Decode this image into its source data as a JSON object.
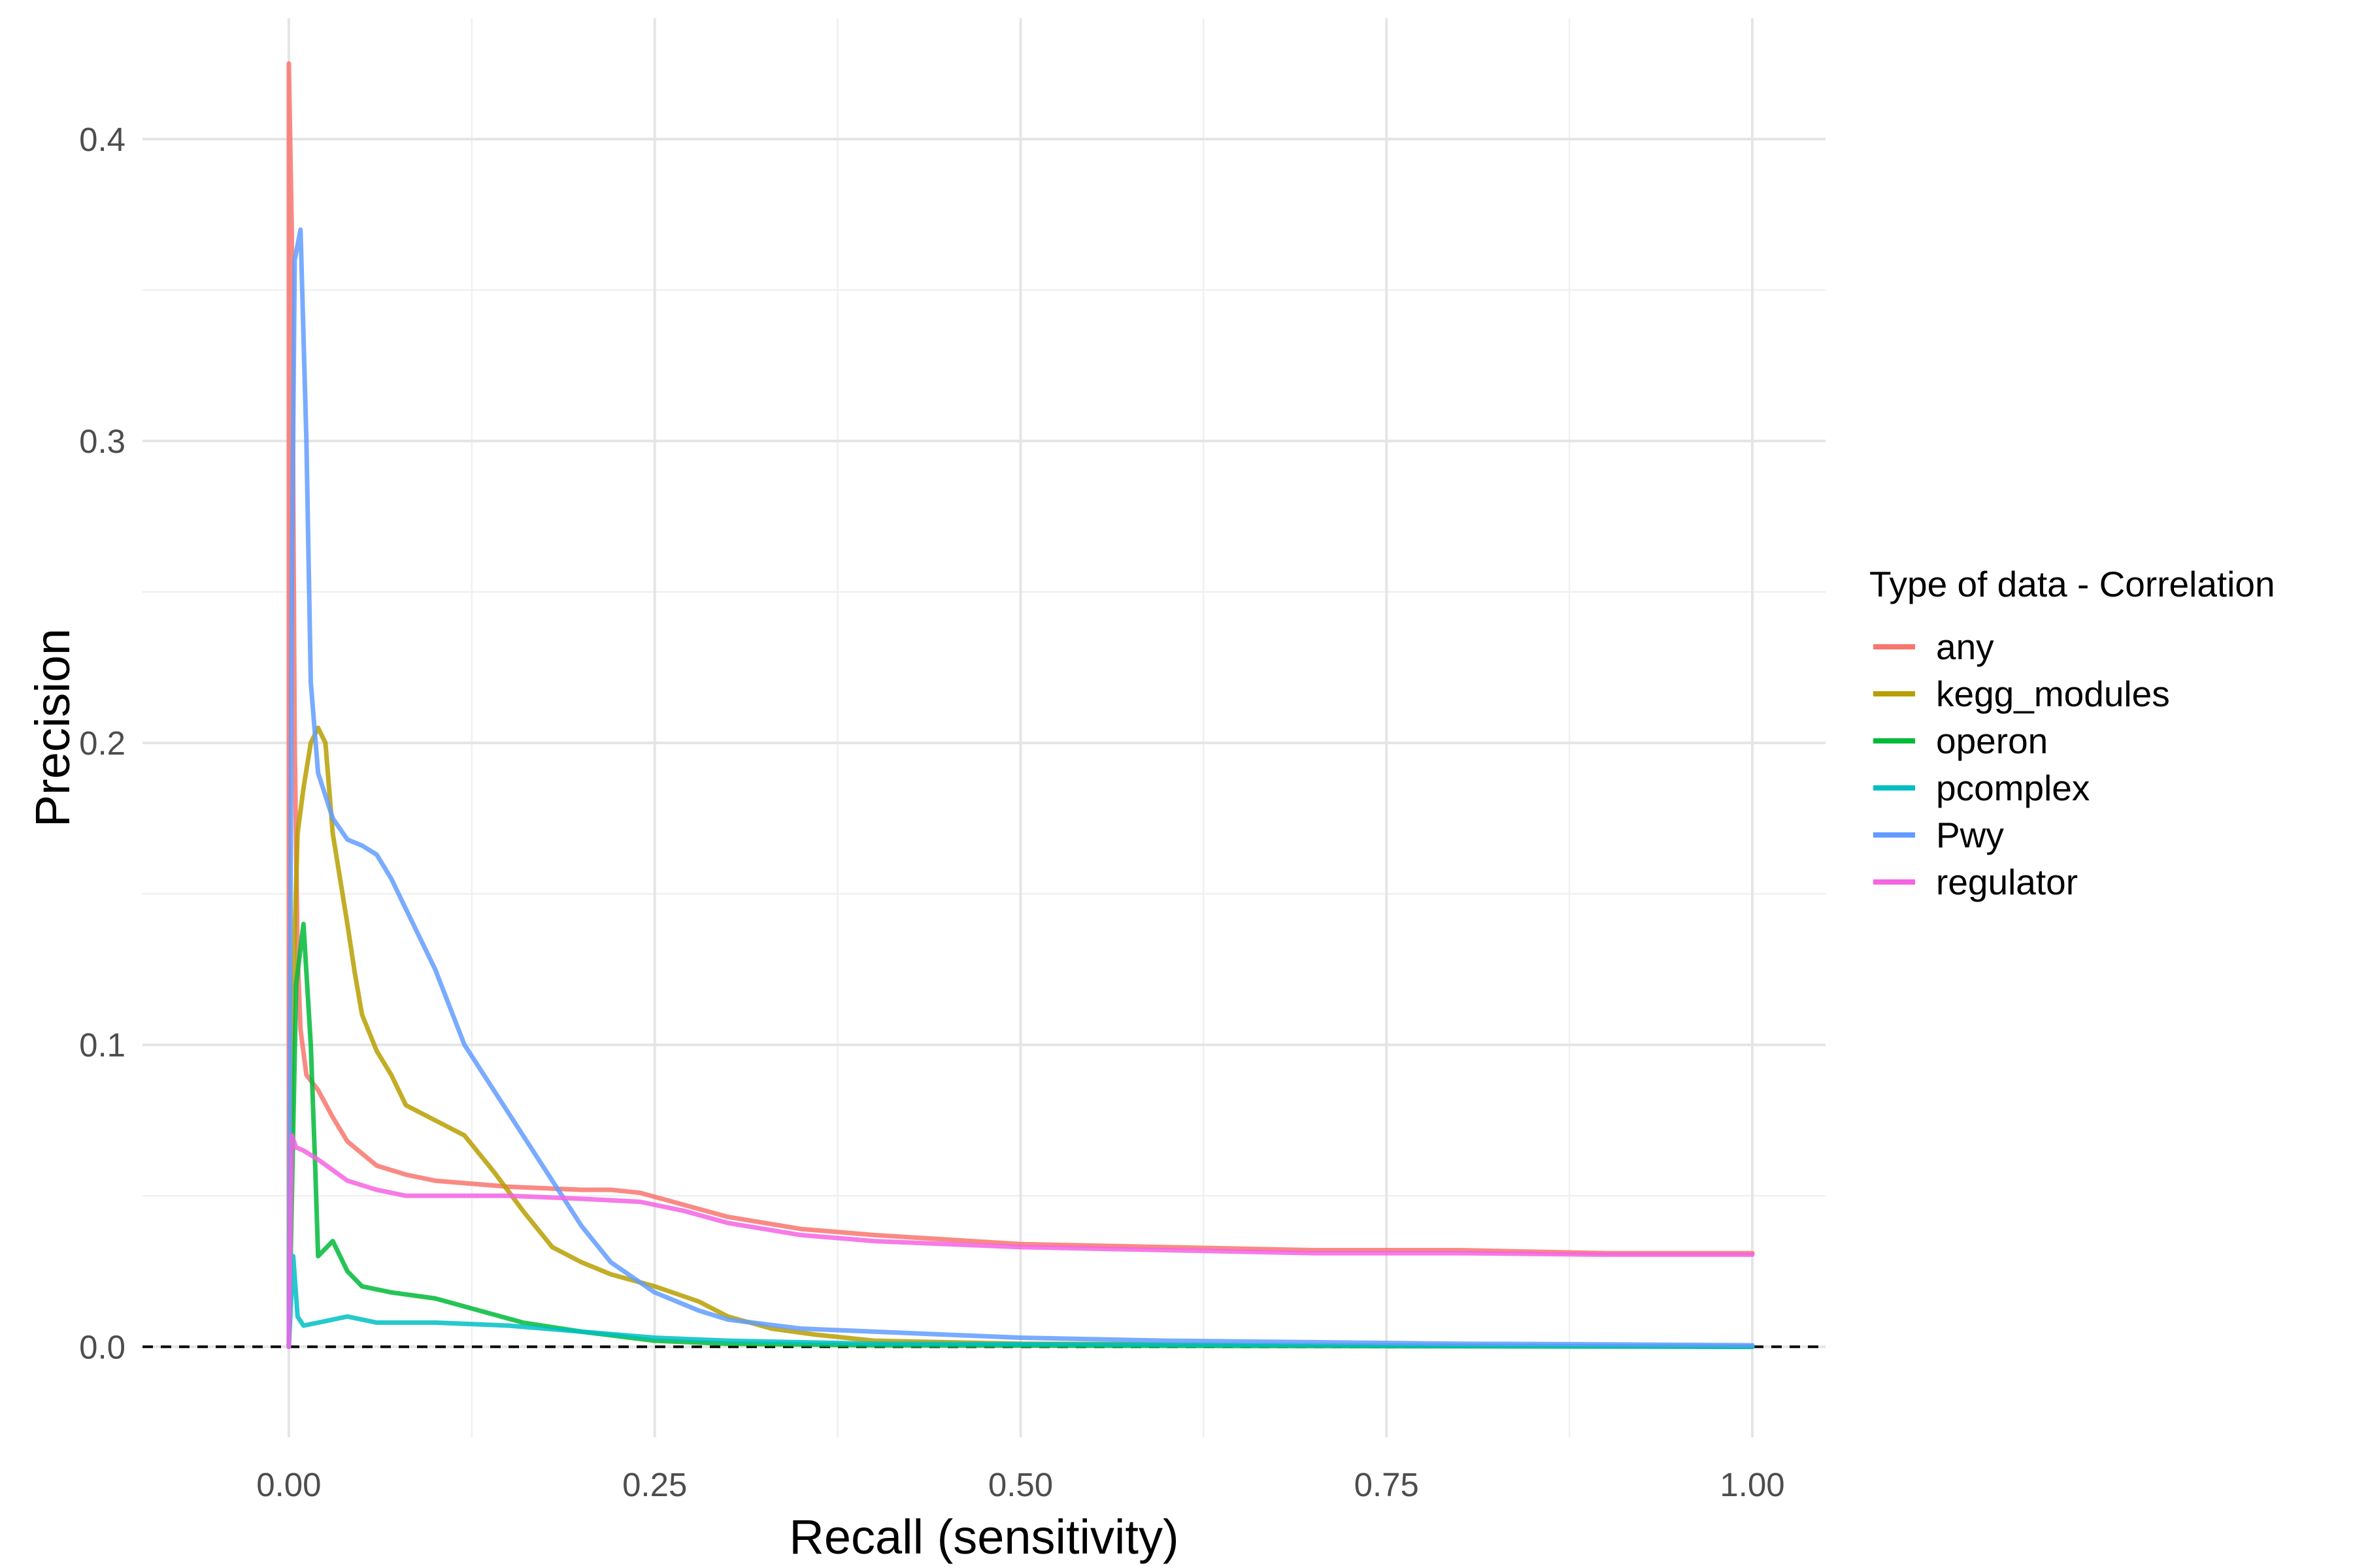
{
  "chart_data": {
    "type": "line",
    "title": "",
    "xlabel": "Recall (sensitivity)",
    "ylabel": "Precision",
    "xlim": [
      -0.1,
      1.05
    ],
    "ylim": [
      -0.03,
      0.44
    ],
    "x_ticks": [
      0,
      0.25,
      0.5,
      0.75,
      1
    ],
    "x_tick_labels": [
      "0.00",
      "0.25",
      "0.50",
      "0.75",
      "1.00"
    ],
    "y_ticks": [
      0,
      0.1,
      0.2,
      0.3,
      0.4
    ],
    "y_tick_labels": [
      "0.0",
      "0.1",
      "0.2",
      "0.3",
      "0.4"
    ],
    "grid": true,
    "reference_line": {
      "y": 0,
      "style": "dashed",
      "color": "#000000"
    },
    "legend": {
      "title": "Type of data - Correlation",
      "position": "right"
    },
    "series": [
      {
        "name": "any",
        "color": "#F8766D",
        "points": [
          [
            0,
            0
          ],
          [
            0,
            0.425
          ],
          [
            0.002,
            0.37
          ],
          [
            0.004,
            0.2
          ],
          [
            0.006,
            0.13
          ],
          [
            0.008,
            0.105
          ],
          [
            0.012,
            0.09
          ],
          [
            0.02,
            0.085
          ],
          [
            0.03,
            0.076
          ],
          [
            0.04,
            0.068
          ],
          [
            0.06,
            0.06
          ],
          [
            0.08,
            0.057
          ],
          [
            0.1,
            0.055
          ],
          [
            0.15,
            0.053
          ],
          [
            0.2,
            0.052
          ],
          [
            0.22,
            0.052
          ],
          [
            0.24,
            0.051
          ],
          [
            0.27,
            0.047
          ],
          [
            0.3,
            0.043
          ],
          [
            0.35,
            0.039
          ],
          [
            0.4,
            0.037
          ],
          [
            0.5,
            0.034
          ],
          [
            0.6,
            0.033
          ],
          [
            0.7,
            0.032
          ],
          [
            0.8,
            0.032
          ],
          [
            0.9,
            0.031
          ],
          [
            1.0,
            0.031
          ]
        ]
      },
      {
        "name": "kegg_modules",
        "color": "#B79F00",
        "points": [
          [
            0,
            0
          ],
          [
            0.003,
            0.12
          ],
          [
            0.006,
            0.17
          ],
          [
            0.01,
            0.185
          ],
          [
            0.015,
            0.2
          ],
          [
            0.02,
            0.205
          ],
          [
            0.025,
            0.2
          ],
          [
            0.03,
            0.17
          ],
          [
            0.035,
            0.155
          ],
          [
            0.04,
            0.14
          ],
          [
            0.045,
            0.124
          ],
          [
            0.05,
            0.11
          ],
          [
            0.06,
            0.098
          ],
          [
            0.07,
            0.09
          ],
          [
            0.08,
            0.08
          ],
          [
            0.1,
            0.075
          ],
          [
            0.12,
            0.07
          ],
          [
            0.14,
            0.058
          ],
          [
            0.16,
            0.045
          ],
          [
            0.18,
            0.033
          ],
          [
            0.2,
            0.028
          ],
          [
            0.22,
            0.024
          ],
          [
            0.25,
            0.02
          ],
          [
            0.28,
            0.015
          ],
          [
            0.3,
            0.01
          ],
          [
            0.33,
            0.006
          ],
          [
            0.36,
            0.004
          ],
          [
            0.4,
            0.002
          ],
          [
            0.5,
            0.001
          ],
          [
            0.7,
            0.0005
          ],
          [
            1.0,
            0
          ]
        ]
      },
      {
        "name": "operon",
        "color": "#00BA38",
        "points": [
          [
            0,
            0
          ],
          [
            0.005,
            0.12
          ],
          [
            0.01,
            0.14
          ],
          [
            0.015,
            0.1
          ],
          [
            0.018,
            0.06
          ],
          [
            0.02,
            0.03
          ],
          [
            0.03,
            0.035
          ],
          [
            0.04,
            0.025
          ],
          [
            0.05,
            0.02
          ],
          [
            0.07,
            0.018
          ],
          [
            0.1,
            0.016
          ],
          [
            0.13,
            0.012
          ],
          [
            0.16,
            0.008
          ],
          [
            0.2,
            0.005
          ],
          [
            0.25,
            0.002
          ],
          [
            0.3,
            0.001
          ],
          [
            0.4,
            0.0005
          ],
          [
            1.0,
            0
          ]
        ]
      },
      {
        "name": "pcomplex",
        "color": "#00BFC4",
        "points": [
          [
            0,
            0
          ],
          [
            0.003,
            0.03
          ],
          [
            0.006,
            0.01
          ],
          [
            0.01,
            0.007
          ],
          [
            0.02,
            0.008
          ],
          [
            0.04,
            0.01
          ],
          [
            0.06,
            0.008
          ],
          [
            0.1,
            0.008
          ],
          [
            0.15,
            0.007
          ],
          [
            0.2,
            0.005
          ],
          [
            0.25,
            0.003
          ],
          [
            0.3,
            0.002
          ],
          [
            0.4,
            0.001
          ],
          [
            1.0,
            0
          ]
        ]
      },
      {
        "name": "Pwy",
        "color": "#619CFF",
        "points": [
          [
            0,
            0
          ],
          [
            0.002,
            0.25
          ],
          [
            0.004,
            0.36
          ],
          [
            0.008,
            0.37
          ],
          [
            0.012,
            0.3
          ],
          [
            0.015,
            0.22
          ],
          [
            0.02,
            0.19
          ],
          [
            0.03,
            0.175
          ],
          [
            0.04,
            0.168
          ],
          [
            0.05,
            0.166
          ],
          [
            0.06,
            0.163
          ],
          [
            0.07,
            0.155
          ],
          [
            0.08,
            0.145
          ],
          [
            0.1,
            0.125
          ],
          [
            0.12,
            0.1
          ],
          [
            0.14,
            0.085
          ],
          [
            0.16,
            0.07
          ],
          [
            0.18,
            0.055
          ],
          [
            0.2,
            0.04
          ],
          [
            0.22,
            0.028
          ],
          [
            0.25,
            0.018
          ],
          [
            0.28,
            0.012
          ],
          [
            0.3,
            0.009
          ],
          [
            0.35,
            0.006
          ],
          [
            0.4,
            0.005
          ],
          [
            0.5,
            0.003
          ],
          [
            0.6,
            0.002
          ],
          [
            0.7,
            0.0015
          ],
          [
            0.8,
            0.001
          ],
          [
            0.9,
            0.0008
          ],
          [
            1.0,
            0.0005
          ]
        ]
      },
      {
        "name": "regulator",
        "color": "#F564E3",
        "points": [
          [
            0,
            0
          ],
          [
            0.002,
            0.07
          ],
          [
            0.005,
            0.066
          ],
          [
            0.01,
            0.065
          ],
          [
            0.02,
            0.062
          ],
          [
            0.04,
            0.055
          ],
          [
            0.06,
            0.052
          ],
          [
            0.08,
            0.05
          ],
          [
            0.1,
            0.05
          ],
          [
            0.15,
            0.05
          ],
          [
            0.2,
            0.049
          ],
          [
            0.24,
            0.048
          ],
          [
            0.27,
            0.045
          ],
          [
            0.3,
            0.041
          ],
          [
            0.35,
            0.037
          ],
          [
            0.4,
            0.035
          ],
          [
            0.5,
            0.033
          ],
          [
            0.6,
            0.032
          ],
          [
            0.7,
            0.031
          ],
          [
            0.8,
            0.031
          ],
          [
            0.9,
            0.0305
          ],
          [
            1.0,
            0.0305
          ]
        ]
      }
    ]
  }
}
